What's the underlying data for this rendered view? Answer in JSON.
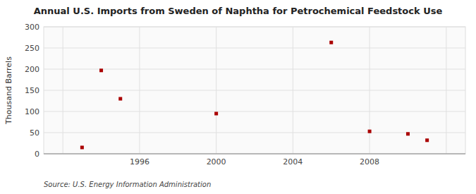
{
  "chart_data": {
    "type": "scatter",
    "title": "Annual U.S. Imports from Sweden of Naphtha for Petrochemical Feedstock Use",
    "ylabel": "Thousand Barrels",
    "source": "Source: U.S. Energy Information Administration",
    "x": [
      1993,
      1994,
      1995,
      2000,
      2006,
      2008,
      2010,
      2011
    ],
    "values": [
      15,
      197,
      130,
      95,
      263,
      53,
      47,
      32
    ],
    "color": "#aa0000",
    "marker": "square",
    "xlim": [
      1991.0,
      2013.0
    ],
    "ylim": [
      0,
      300
    ],
    "xticks": [
      {
        "value": 1992,
        "label": null
      },
      1996,
      2000,
      2004,
      2008,
      {
        "value": 2012,
        "label": null
      }
    ],
    "yticks": [
      0,
      50,
      100,
      150,
      200,
      250,
      300
    ],
    "grid": true
  }
}
